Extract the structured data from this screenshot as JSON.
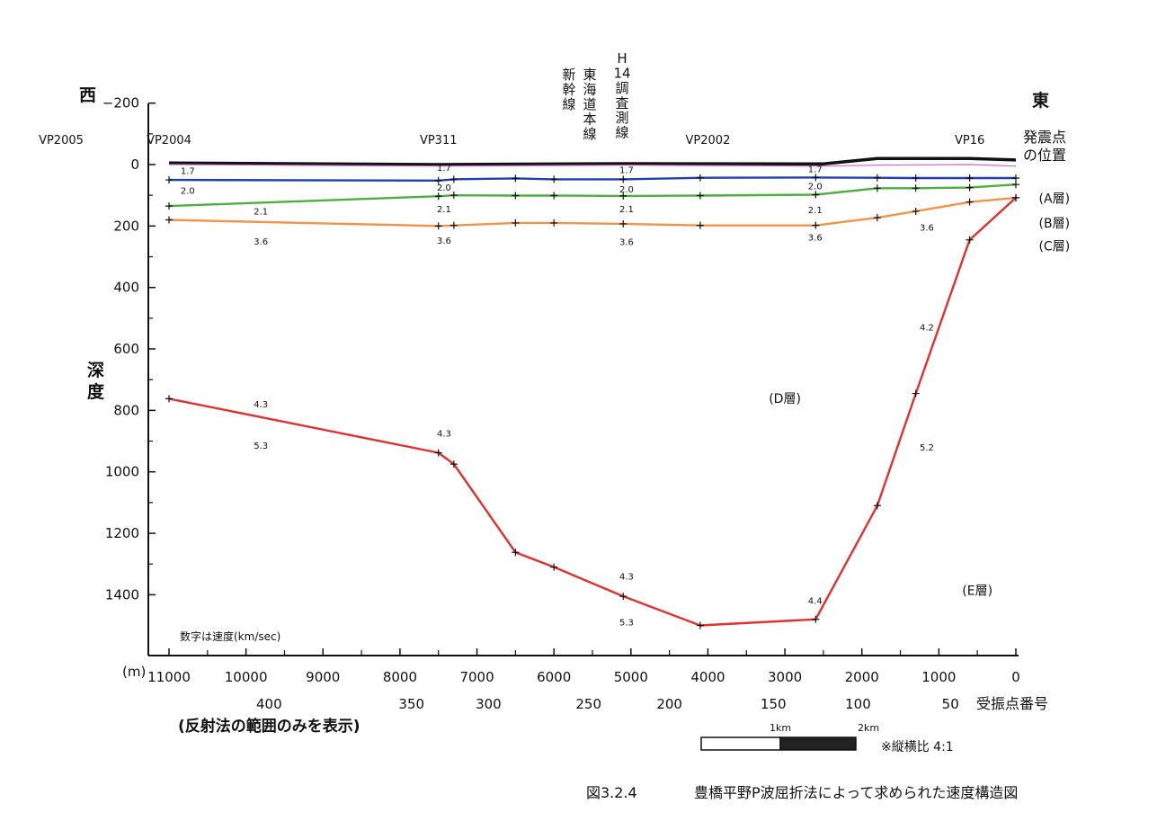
{
  "labels": {
    "west": "西",
    "east": "東",
    "depth_axis_label": "深度",
    "depth_unit": "(m)",
    "shot_point_label": [
      "発震点",
      "の位置"
    ],
    "receiver_label": "受振点番号",
    "reflection_note": "(反射法の範囲のみを表示)",
    "velocity_note": "数字は速度(km/sec)",
    "aspect_note": "※縦横比 4:1",
    "figure_number": "図3.2.4",
    "figure_title": "豊橋平野P波屈折法によって求められた速度構造図",
    "survey_line_h14": [
      "H",
      "14",
      "調",
      "査",
      "測",
      "線"
    ],
    "tokaido_line": [
      "東",
      "海",
      "道",
      "本",
      "線"
    ],
    "shinkansen_line": [
      "新",
      "幹",
      "線"
    ]
  },
  "scale_bar": {
    "label_1": "1km",
    "label_2": "2km"
  },
  "vp_markers": [
    {
      "label": "VP2005",
      "x": null
    },
    {
      "label": "VP2004",
      "x": 11000
    },
    {
      "label": "VP311",
      "x": 7500
    },
    {
      "label": "VP2002",
      "x": 4000
    },
    {
      "label": "VP16",
      "x": 600
    }
  ],
  "layer_labels": [
    {
      "text": "(A層)",
      "x": -500,
      "y": 125
    },
    {
      "text": "(B層)",
      "x": -500,
      "y": 205
    },
    {
      "text": "(C層)",
      "x": -500,
      "y": 280
    },
    {
      "text": "(D層)",
      "x": 3000,
      "y": 775
    },
    {
      "text": "(E層)",
      "x": 500,
      "y": 1400
    }
  ],
  "velocity_labels": [
    {
      "text": "1.7",
      "x": 10850,
      "y": 30
    },
    {
      "text": "1.7",
      "x": 7520,
      "y": 20
    },
    {
      "text": "1.7",
      "x": 5150,
      "y": 28
    },
    {
      "text": "1.7",
      "x": 2700,
      "y": 25
    },
    {
      "text": "2.0",
      "x": 10850,
      "y": 95
    },
    {
      "text": "2.0",
      "x": 7520,
      "y": 85
    },
    {
      "text": "2.0",
      "x": 5150,
      "y": 90
    },
    {
      "text": "2.0",
      "x": 2700,
      "y": 80
    },
    {
      "text": "2.1",
      "x": 9900,
      "y": 162
    },
    {
      "text": "2.1",
      "x": 7520,
      "y": 155
    },
    {
      "text": "2.1",
      "x": 5150,
      "y": 155
    },
    {
      "text": "2.1",
      "x": 2700,
      "y": 158
    },
    {
      "text": "3.6",
      "x": 9900,
      "y": 260
    },
    {
      "text": "3.6",
      "x": 7520,
      "y": 258
    },
    {
      "text": "3.6",
      "x": 5150,
      "y": 262
    },
    {
      "text": "3.6",
      "x": 2700,
      "y": 248
    },
    {
      "text": "3.6",
      "x": 1250,
      "y": 215
    },
    {
      "text": "4.2",
      "x": 1250,
      "y": 540
    },
    {
      "text": "4.3",
      "x": 9900,
      "y": 790
    },
    {
      "text": "5.3",
      "x": 9900,
      "y": 925
    },
    {
      "text": "4.3",
      "x": 7520,
      "y": 885
    },
    {
      "text": "5.2",
      "x": 1250,
      "y": 930
    },
    {
      "text": "4.3",
      "x": 5150,
      "y": 1350
    },
    {
      "text": "5.3",
      "x": 5150,
      "y": 1500
    },
    {
      "text": "4.4",
      "x": 2700,
      "y": 1430
    }
  ],
  "chart_data": {
    "type": "line",
    "xlabel": "(m)",
    "ylabel": "深度",
    "xlim": [
      11000,
      0
    ],
    "ylim": [
      -200,
      1600
    ],
    "x_ticks": [
      11000,
      10000,
      9000,
      8000,
      7000,
      6000,
      5000,
      4000,
      3000,
      2000,
      1000,
      0
    ],
    "y_ticks": [
      -200,
      0,
      200,
      400,
      600,
      800,
      1000,
      1200,
      1400
    ],
    "receiver_ticks": [
      {
        "label": "400",
        "x": 9700
      },
      {
        "label": "350",
        "x": 7850
      },
      {
        "label": "300",
        "x": 6850
      },
      {
        "label": "250",
        "x": 5550
      },
      {
        "label": "200",
        "x": 4500
      },
      {
        "label": "150",
        "x": 3150
      },
      {
        "label": "100",
        "x": 2050
      },
      {
        "label": "50",
        "x": 850
      }
    ],
    "series": [
      {
        "color": "#111111",
        "points": [
          [
            11000,
            -5
          ],
          [
            7500,
            0
          ],
          [
            5000,
            -3
          ],
          [
            2500,
            -2
          ],
          [
            1800,
            -20
          ],
          [
            600,
            -20
          ],
          [
            0,
            -15
          ]
        ]
      },
      {
        "color": "#cc66cc",
        "points": [
          [
            11000,
            0
          ],
          [
            7500,
            5
          ],
          [
            5000,
            2
          ],
          [
            2500,
            5
          ],
          [
            1800,
            2
          ],
          [
            600,
            0
          ],
          [
            0,
            5
          ]
        ]
      },
      {
        "color": "#2040b0",
        "points": [
          [
            11000,
            50
          ],
          [
            7500,
            52
          ],
          [
            7300,
            48
          ],
          [
            6500,
            45
          ],
          [
            6000,
            48
          ],
          [
            5100,
            48
          ],
          [
            4100,
            43
          ],
          [
            2600,
            42
          ],
          [
            1800,
            43
          ],
          [
            1300,
            44
          ],
          [
            600,
            44
          ],
          [
            0,
            44
          ]
        ]
      },
      {
        "color": "#4caf3f",
        "points": [
          [
            11000,
            135
          ],
          [
            7500,
            103
          ],
          [
            7300,
            100
          ],
          [
            6500,
            101
          ],
          [
            6000,
            101
          ],
          [
            5100,
            102
          ],
          [
            4100,
            101
          ],
          [
            2600,
            98
          ],
          [
            1800,
            77
          ],
          [
            1300,
            77
          ],
          [
            600,
            75
          ],
          [
            0,
            65
          ]
        ]
      },
      {
        "color": "#f0944a",
        "points": [
          [
            11000,
            180
          ],
          [
            7500,
            200
          ],
          [
            7300,
            198
          ],
          [
            6500,
            190
          ],
          [
            6000,
            190
          ],
          [
            5100,
            193
          ],
          [
            4100,
            198
          ],
          [
            2600,
            198
          ],
          [
            1800,
            173
          ],
          [
            1300,
            152
          ],
          [
            600,
            122
          ],
          [
            0,
            108
          ]
        ]
      },
      {
        "color": "#e03030",
        "points": [
          [
            11000,
            762
          ],
          [
            7500,
            938
          ],
          [
            7300,
            975
          ],
          [
            6500,
            1262
          ],
          [
            6000,
            1310
          ],
          [
            5100,
            1405
          ],
          [
            4100,
            1500
          ],
          [
            2600,
            1480
          ],
          [
            1800,
            1110
          ],
          [
            1300,
            745
          ],
          [
            600,
            245
          ],
          [
            0,
            108
          ]
        ]
      }
    ]
  }
}
